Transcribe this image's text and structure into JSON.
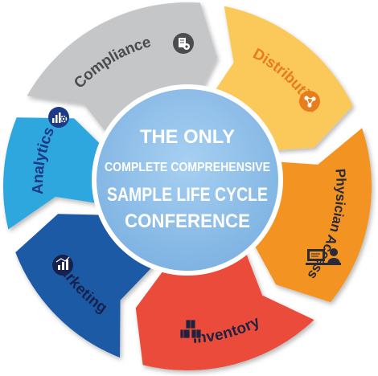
{
  "center": {
    "line1": "THE ONLY",
    "line2": "COMPLETE COMPREHENSIVE",
    "line3": "SAMPLE LIFE CYCLE",
    "line4": "CONFERENCE"
  },
  "segments": [
    {
      "id": "compliance",
      "label": "Compliance",
      "color": "#c4c6c8",
      "text_color": "#4a4d50",
      "icon": "document-gear-icon"
    },
    {
      "id": "distribution",
      "label": "Distribution",
      "color": "#fbc85a",
      "text_color": "#e87d1e",
      "icon": "network-share-icon"
    },
    {
      "id": "physician-access",
      "label": "Physician Access",
      "color": "#f39420",
      "text_color": "#2a2a3a",
      "icon": "physician-desk-icon"
    },
    {
      "id": "inventory",
      "label": "Inventory",
      "color": "#ea4b3b",
      "text_color": "#1f2340",
      "icon": "boxes-icon"
    },
    {
      "id": "marketing",
      "label": "Marketing",
      "color": "#1d5aa6",
      "text_color": "#16224d",
      "icon": "marketing-chart-icon"
    },
    {
      "id": "analytics",
      "label": "Analytics",
      "color": "#2fa7df",
      "text_color": "#1c3a86",
      "icon": "analytics-gears-icon"
    }
  ],
  "colors": {
    "hub": "#8ec0ea",
    "hub_ring": "#ffffff",
    "center_text": "#ffffff"
  }
}
